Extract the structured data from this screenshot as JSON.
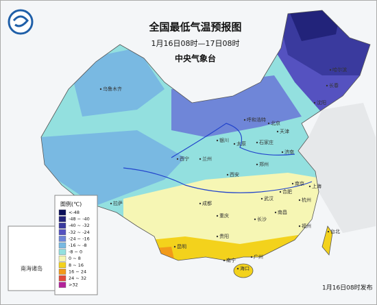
{
  "header": {
    "title": "全国最低气温预报图",
    "subtitle": "1月16日08时—17日08时",
    "issuer": "中央气象台"
  },
  "legend": {
    "title": "图例(℃)",
    "items": [
      {
        "label": "<-48",
        "color": "#0b0f5a"
      },
      {
        "label": "-48 ~ -40",
        "color": "#22237a"
      },
      {
        "label": "-40 ~ -32",
        "color": "#3a3a9e"
      },
      {
        "label": "-32 ~ -24",
        "color": "#5552c0"
      },
      {
        "label": "-24 ~ -16",
        "color": "#6f86d8"
      },
      {
        "label": "-16 ~ -8",
        "color": "#79b9e2"
      },
      {
        "label": "-8 ~ 0",
        "color": "#93e0df"
      },
      {
        "label": "0 ~ 8",
        "color": "#f6f6b4"
      },
      {
        "label": "8 ~ 16",
        "color": "#f3d21c"
      },
      {
        "label": "16 ~ 24",
        "color": "#f29a1a"
      },
      {
        "label": "24 ~ 32",
        "color": "#e24a3a"
      },
      {
        "label": ">32",
        "color": "#b3229a"
      }
    ]
  },
  "inset": {
    "label": "南海诸岛"
  },
  "cities": [
    "乌鲁木齐",
    "哈尔滨",
    "长春",
    "沈阳",
    "呼和浩特",
    "北京",
    "天津",
    "石家庄",
    "太原",
    "银川",
    "兰州",
    "西宁",
    "济南",
    "郑州",
    "西安",
    "南京",
    "合肥",
    "上海",
    "武汉",
    "杭州",
    "成都",
    "重庆",
    "长沙",
    "南昌",
    "福州",
    "贵阳",
    "昆明",
    "南宁",
    "广州",
    "海口",
    "拉萨",
    "台北"
  ],
  "footer": "1月16日08时发布"
}
